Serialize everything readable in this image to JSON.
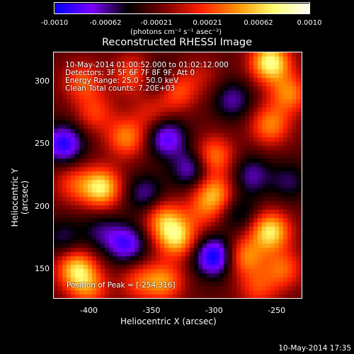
{
  "colorbar": {
    "ticks": [
      "-0.0010",
      "-0.00062",
      "-0.00021",
      "0.00021",
      "0.00062",
      "0.0010"
    ],
    "units": "(photons cm⁻² s⁻¹ asec⁻²)",
    "vmin": -0.001,
    "vmax": 0.001,
    "colors": [
      "#0000ff",
      "#7a00ff",
      "#000000",
      "#7a0000",
      "#ff2000",
      "#ff9000",
      "#ffff70",
      "#ffffff"
    ]
  },
  "title": "Reconstructed RHESSI Image",
  "annotations": {
    "line1": "10-May-2014 01:00:52.000 to 01:02:12.000",
    "line2": "Detectors: 3F 5F 6F 7F 8F 9F, Att 0",
    "line3": "Energy Range: 25.0 - 50.0 keV",
    "line4": "Clean     Total counts: 7.20E+03",
    "peak": "Position of Peak = [-254,316]"
  },
  "chart_data": {
    "type": "heatmap",
    "title": "Reconstructed RHESSI Image",
    "xlabel": "Heliocentric X (arcsec)",
    "ylabel": "Heliocentric Y (arcsec)",
    "xlim": [
      -428,
      -230
    ],
    "ylim": [
      127,
      323
    ],
    "xticks": [
      "-400",
      "-350",
      "-300",
      "-250"
    ],
    "xtick_values": [
      -400,
      -350,
      -300,
      -250
    ],
    "yticks": [
      "150",
      "200",
      "250",
      "300"
    ],
    "ytick_values": [
      150,
      200,
      250,
      300
    ],
    "peak": [
      -254,
      316
    ],
    "blobs": [
      {
        "x": -420,
        "y": 250,
        "v": -0.0007
      },
      {
        "x": -390,
        "y": 215,
        "v": 0.0009
      },
      {
        "x": -412,
        "y": 218,
        "v": 0.0004
      },
      {
        "x": -395,
        "y": 275,
        "v": 0.0004
      },
      {
        "x": -405,
        "y": 300,
        "v": 0.0005
      },
      {
        "x": -370,
        "y": 255,
        "v": 0.0006
      },
      {
        "x": -365,
        "y": 305,
        "v": 0.0005
      },
      {
        "x": -345,
        "y": 300,
        "v": -0.0003
      },
      {
        "x": -330,
        "y": 292,
        "v": 0.0005
      },
      {
        "x": -338,
        "y": 255,
        "v": -0.0006
      },
      {
        "x": -310,
        "y": 305,
        "v": 0.0002
      },
      {
        "x": -285,
        "y": 285,
        "v": -0.0004
      },
      {
        "x": -255,
        "y": 315,
        "v": 0.001
      },
      {
        "x": -240,
        "y": 290,
        "v": 0.0006
      },
      {
        "x": -255,
        "y": 265,
        "v": 0.0006
      },
      {
        "x": -300,
        "y": 240,
        "v": 0.0006
      },
      {
        "x": -300,
        "y": 210,
        "v": 0.0007
      },
      {
        "x": -318,
        "y": 230,
        "v": -0.0005
      },
      {
        "x": -270,
        "y": 225,
        "v": -0.0004
      },
      {
        "x": -240,
        "y": 220,
        "v": -0.0003
      },
      {
        "x": -355,
        "y": 210,
        "v": -0.0004
      },
      {
        "x": -390,
        "y": 180,
        "v": -0.0003
      },
      {
        "x": -370,
        "y": 170,
        "v": -0.0006
      },
      {
        "x": -340,
        "y": 190,
        "v": 0.0006
      },
      {
        "x": -330,
        "y": 175,
        "v": 0.0008
      },
      {
        "x": -310,
        "y": 195,
        "v": 0.0003
      },
      {
        "x": -300,
        "y": 160,
        "v": -0.0008
      },
      {
        "x": -275,
        "y": 160,
        "v": 0.0006
      },
      {
        "x": -255,
        "y": 180,
        "v": 0.0009
      },
      {
        "x": -245,
        "y": 150,
        "v": 0.0005
      },
      {
        "x": -410,
        "y": 150,
        "v": 0.0008
      },
      {
        "x": -400,
        "y": 135,
        "v": 0.0005
      },
      {
        "x": -360,
        "y": 140,
        "v": 0.0004
      },
      {
        "x": -340,
        "y": 140,
        "v": 0.0006
      },
      {
        "x": -265,
        "y": 135,
        "v": 0.0004
      },
      {
        "x": -280,
        "y": 195,
        "v": -0.0003
      },
      {
        "x": -420,
        "y": 175,
        "v": -0.0003
      },
      {
        "x": -350,
        "y": 275,
        "v": 0.0003
      }
    ]
  },
  "timestamp": "10-May-2014 17:35"
}
